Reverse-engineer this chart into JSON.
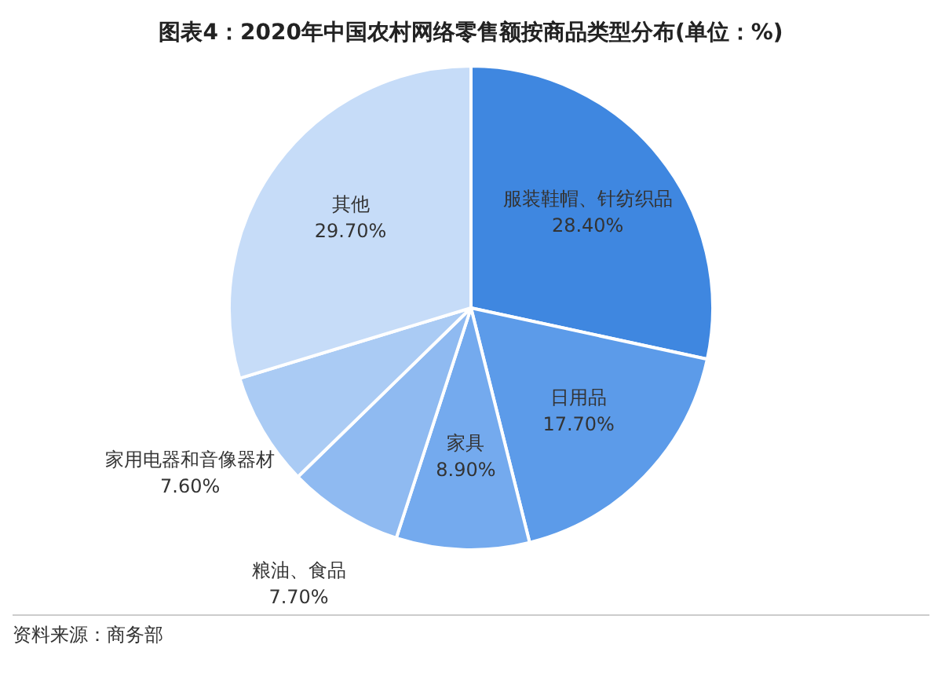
{
  "chart_data": {
    "type": "pie",
    "title": "图表4：2020年中国农村网络零售额按商品类型分布(单位：%)",
    "categories": [
      "服装鞋帽、针纺织品",
      "日用品",
      "家具",
      "粮油、食品",
      "家用电器和音像器材",
      "其他"
    ],
    "values": [
      28.4,
      17.7,
      8.9,
      7.7,
      7.6,
      29.7
    ],
    "colors": [
      "#3f87e0",
      "#5c9be9",
      "#74aaee",
      "#8fbaf1",
      "#aacbf4",
      "#c6dcf8"
    ],
    "value_labels": [
      "28.40%",
      "17.70%",
      "8.90%",
      "7.70%",
      "7.60%",
      "29.70%"
    ],
    "legend": false,
    "annotations": [
      "资料来源：商务部"
    ]
  }
}
